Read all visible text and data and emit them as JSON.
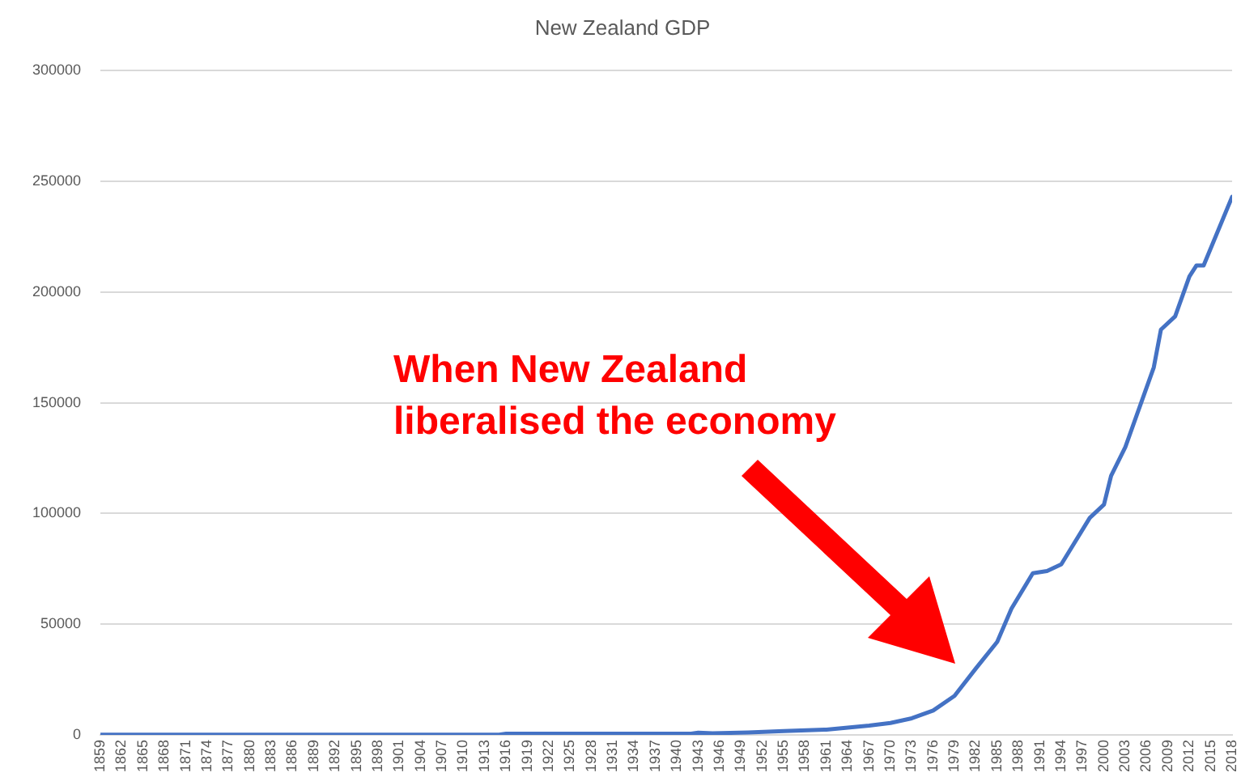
{
  "chart_data": {
    "type": "line",
    "title": "New Zealand GDP",
    "annotations": [
      "When New Zealand\nliberalised the economy"
    ],
    "xlim": [
      1859,
      2018
    ],
    "xticks": [
      1859,
      1862,
      1865,
      1868,
      1871,
      1874,
      1877,
      1880,
      1883,
      1886,
      1889,
      1892,
      1895,
      1898,
      1901,
      1904,
      1907,
      1910,
      1913,
      1916,
      1919,
      1922,
      1925,
      1928,
      1931,
      1934,
      1937,
      1940,
      1943,
      1946,
      1949,
      1952,
      1955,
      1958,
      1961,
      1964,
      1967,
      1970,
      1973,
      1976,
      1979,
      1982,
      1985,
      1988,
      1991,
      1994,
      1997,
      2000,
      2003,
      2006,
      2009,
      2012,
      2015,
      2018
    ],
    "ylim": [
      0,
      300000
    ],
    "yticks": [
      0,
      50000,
      100000,
      150000,
      200000,
      250000,
      300000
    ],
    "grid": "y",
    "legend": false,
    "marker": "none",
    "line_style": "solid",
    "series": [
      {
        "color": "#4472c4",
        "x": [
          1859,
          1915,
          1916,
          1942,
          1943,
          1945,
          1950,
          1955,
          1961,
          1967,
          1970,
          1973,
          1976,
          1979,
          1982,
          1985,
          1987,
          1990,
          1992,
          1994,
          1998,
          2000,
          2001,
          2003,
          2005,
          2007,
          2008,
          2010,
          2012,
          2013,
          2014,
          2018
        ],
        "values": [
          100,
          100,
          500,
          500,
          1000,
          700,
          1100,
          1700,
          2400,
          4200,
          5400,
          7500,
          11000,
          17600,
          30000,
          42000,
          57000,
          73000,
          74000,
          77000,
          98000,
          104000,
          117000,
          130000,
          148000,
          166000,
          183000,
          189000,
          207000,
          212000,
          212000,
          243000
        ]
      }
    ]
  }
}
